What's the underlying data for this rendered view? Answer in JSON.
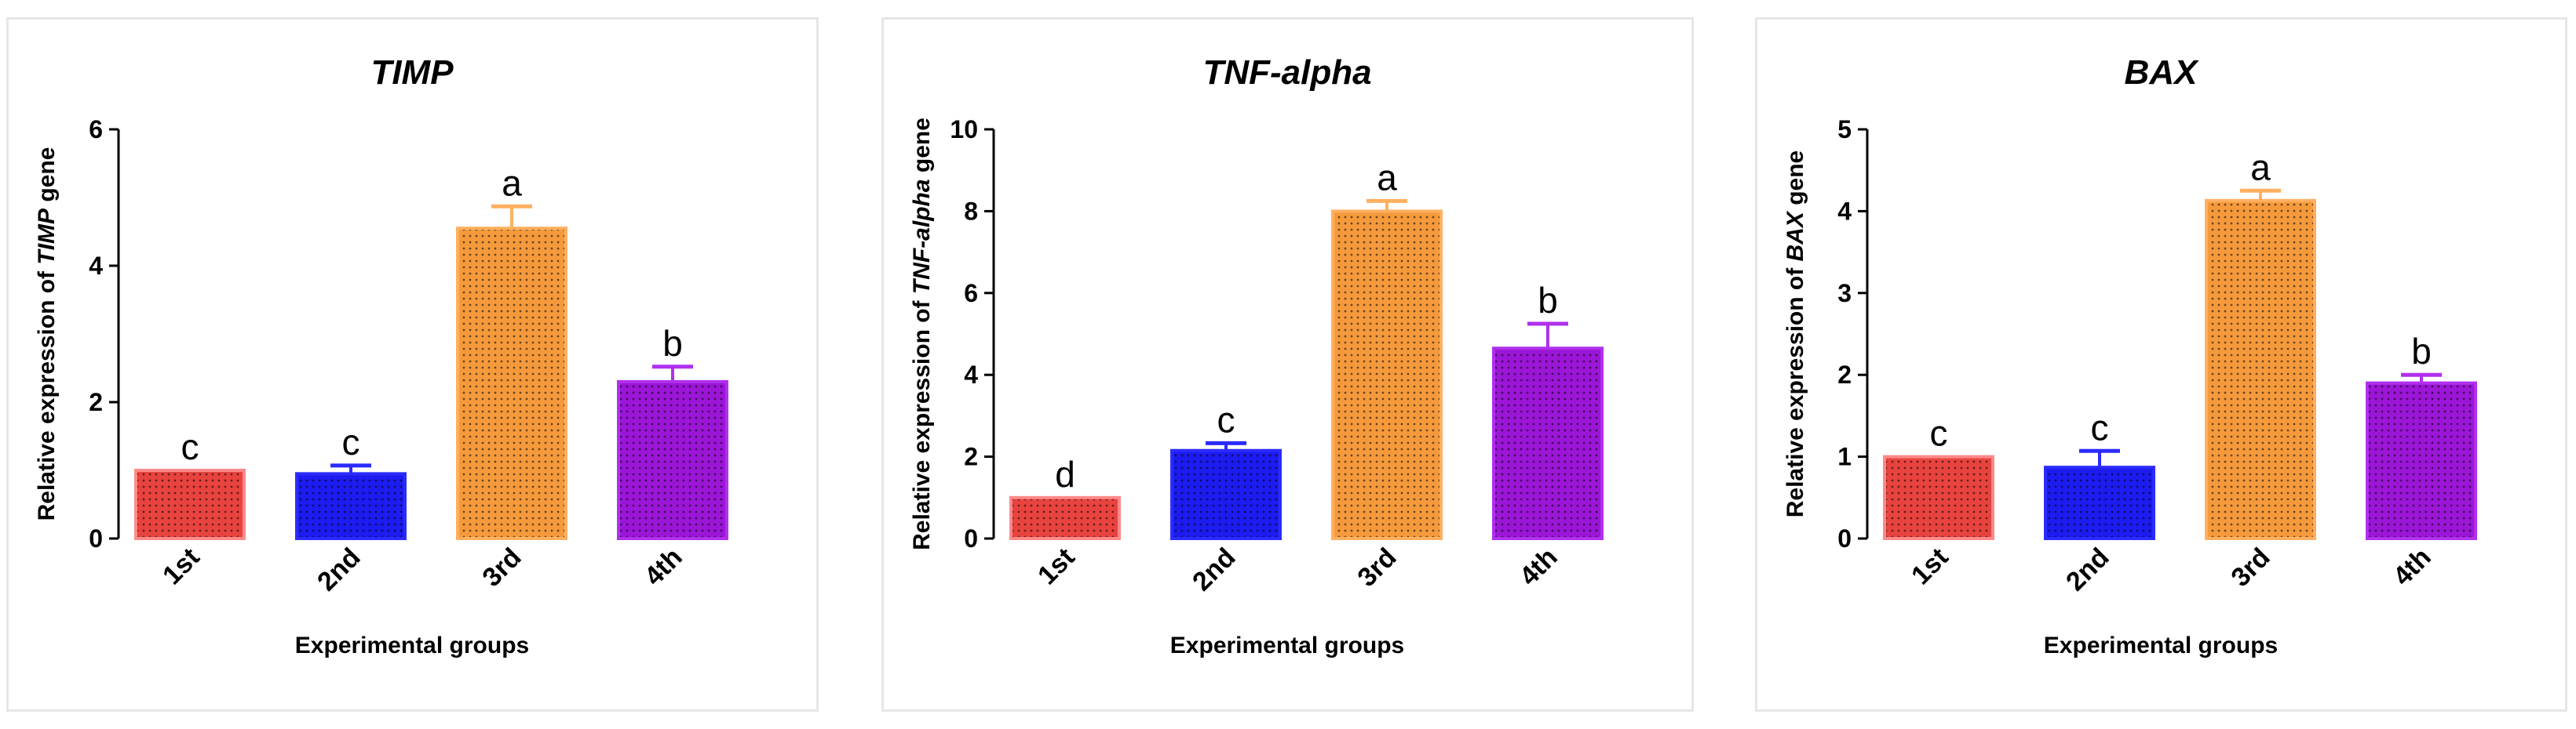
{
  "chart_data": [
    {
      "type": "bar",
      "title": "TIMP",
      "ylabel_prefix": "Relative expression of ",
      "ylabel_gene": "TIMP",
      "ylabel_suffix": " gene",
      "xlabel": "Experimental groups",
      "categories": [
        "1st",
        "2nd",
        "3rd",
        "4th"
      ],
      "values": [
        1.0,
        0.95,
        4.55,
        2.3
      ],
      "errors": [
        0.0,
        0.12,
        0.32,
        0.22
      ],
      "letters": [
        "c",
        "c",
        "a",
        "b"
      ],
      "ylim": [
        0,
        6
      ],
      "yticks": [
        0,
        2,
        4,
        6
      ],
      "colors": [
        "#e8433e",
        "#1c1cf0",
        "#f59a3c",
        "#9b16d6"
      ],
      "edge_colors": [
        "#ff8a8a",
        "#2b2bff",
        "#ffb060",
        "#b030ee"
      ]
    },
    {
      "type": "bar",
      "title": "TNF-alpha",
      "ylabel_prefix": "Relative expression of ",
      "ylabel_gene": "TNF-alpha",
      "ylabel_suffix": " gene",
      "xlabel": "Experimental groups",
      "categories": [
        "1st",
        "2nd",
        "3rd",
        "4th"
      ],
      "values": [
        1.0,
        2.15,
        8.0,
        4.65
      ],
      "errors": [
        0.0,
        0.18,
        0.25,
        0.6
      ],
      "letters": [
        "d",
        "c",
        "a",
        "b"
      ],
      "ylim": [
        0,
        10
      ],
      "yticks": [
        0,
        2,
        4,
        6,
        8,
        10
      ],
      "colors": [
        "#e8433e",
        "#1c1cf0",
        "#f59a3c",
        "#9b16d6"
      ],
      "edge_colors": [
        "#ff8a8a",
        "#2b2bff",
        "#ffb060",
        "#b030ee"
      ]
    },
    {
      "type": "bar",
      "title": "BAX",
      "ylabel_prefix": "Relative expression of ",
      "ylabel_gene": "BAX",
      "ylabel_suffix": " gene",
      "xlabel": "Experimental groups",
      "categories": [
        "1st",
        "2nd",
        "3rd",
        "4th"
      ],
      "values": [
        1.0,
        0.87,
        4.13,
        1.9
      ],
      "errors": [
        0.0,
        0.2,
        0.12,
        0.1
      ],
      "letters": [
        "c",
        "c",
        "a",
        "b"
      ],
      "ylim": [
        0,
        5
      ],
      "yticks": [
        0,
        1,
        2,
        3,
        4,
        5
      ],
      "colors": [
        "#e8433e",
        "#1c1cf0",
        "#f59a3c",
        "#9b16d6"
      ],
      "edge_colors": [
        "#ff8a8a",
        "#2b2bff",
        "#ffb060",
        "#b030ee"
      ]
    }
  ]
}
